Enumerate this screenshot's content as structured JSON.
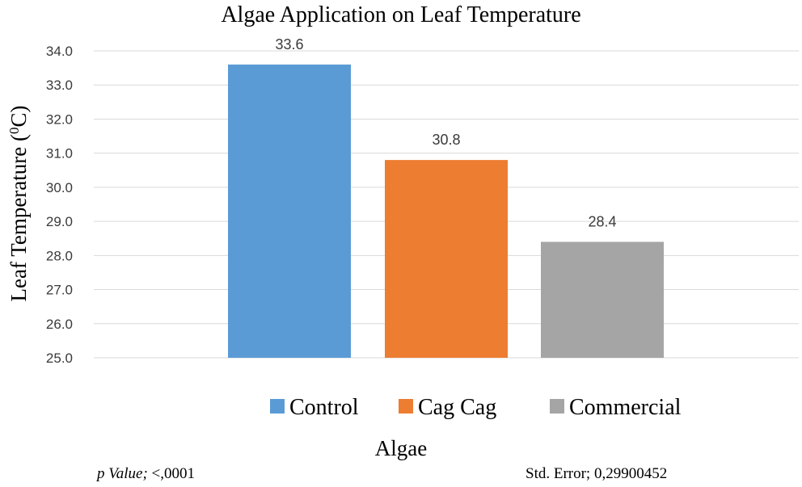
{
  "chart_data": {
    "type": "bar",
    "title": "Algae Application on Leaf Temperature",
    "xlabel": "Algae",
    "ylabel_main": "Leaf Temperature (",
    "ylabel_superscript": "0",
    "ylabel_unit": "C)",
    "ylim": [
      25.0,
      34.0
    ],
    "ytick_step": 1.0,
    "yticks": [
      "25.0",
      "26.0",
      "27.0",
      "28.0",
      "29.0",
      "30.0",
      "31.0",
      "32.0",
      "33.0",
      "34.0"
    ],
    "grid": true,
    "legend_position": "bottom",
    "series": [
      {
        "name": "Control",
        "value": 33.6,
        "label": "33.6",
        "color": "#5B9BD5"
      },
      {
        "name": "Cag Cag",
        "value": 30.8,
        "label": "30.8",
        "color": "#ED7D31"
      },
      {
        "name": "Commercial",
        "value": 28.4,
        "label": "28.4",
        "color": "#A5A5A5"
      }
    ]
  },
  "footnotes": {
    "p_value_label": "p Value;",
    "p_value": " <,0001",
    "std_error": "Std. Error; 0,29900452"
  }
}
